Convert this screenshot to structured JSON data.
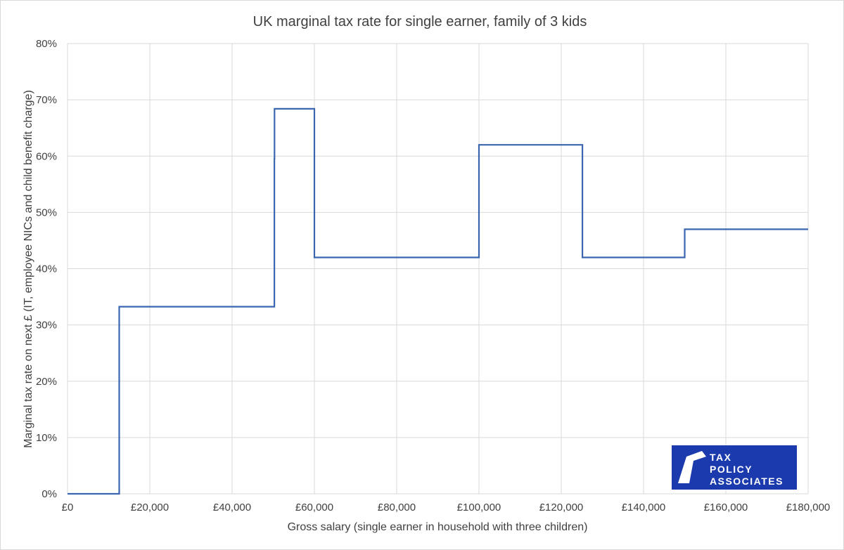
{
  "chart_data": {
    "type": "line",
    "subtype": "step",
    "title": "UK marginal tax rate for single earner, family of 3 kids",
    "xlabel": "Gross salary (single earner in household with three children)",
    "ylabel": "Marginal tax rate on next £ (IT, employee NICs and child benefit charge)",
    "xlim": [
      0,
      180000
    ],
    "ylim": [
      0,
      80
    ],
    "x_ticks": [
      0,
      20000,
      40000,
      60000,
      80000,
      100000,
      120000,
      140000,
      160000,
      180000
    ],
    "x_tick_labels": [
      "£0",
      "£20,000",
      "£40,000",
      "£60,000",
      "£80,000",
      "£100,000",
      "£120,000",
      "£140,000",
      "£160,000",
      "£180,000"
    ],
    "y_ticks": [
      0,
      10,
      20,
      30,
      40,
      50,
      60,
      70,
      80
    ],
    "y_tick_labels": [
      "0%",
      "10%",
      "20%",
      "30%",
      "40%",
      "50%",
      "60%",
      "70%",
      "80%"
    ],
    "grid": true,
    "legend": "none",
    "series": [
      {
        "color": "#3a66b0",
        "x": [
          0,
          12570,
          12570,
          50270,
          50270,
          50300,
          50300,
          60000,
          60000,
          100000,
          100000,
          125140,
          125140,
          150000,
          150000,
          180000
        ],
        "y": [
          0,
          0,
          33.25,
          33.25,
          59.5,
          59.5,
          68.4,
          68.4,
          42,
          42,
          62,
          62,
          42,
          42,
          47,
          47
        ]
      }
    ]
  },
  "logo": {
    "line1": "TAX",
    "line2": "POLICY",
    "line3": "ASSOCIATES",
    "background": "#1a3aad",
    "color": "#ffffff"
  },
  "colors": {
    "grid": "#d9d9d9",
    "text": "#404040",
    "line": "#3a66b0"
  }
}
